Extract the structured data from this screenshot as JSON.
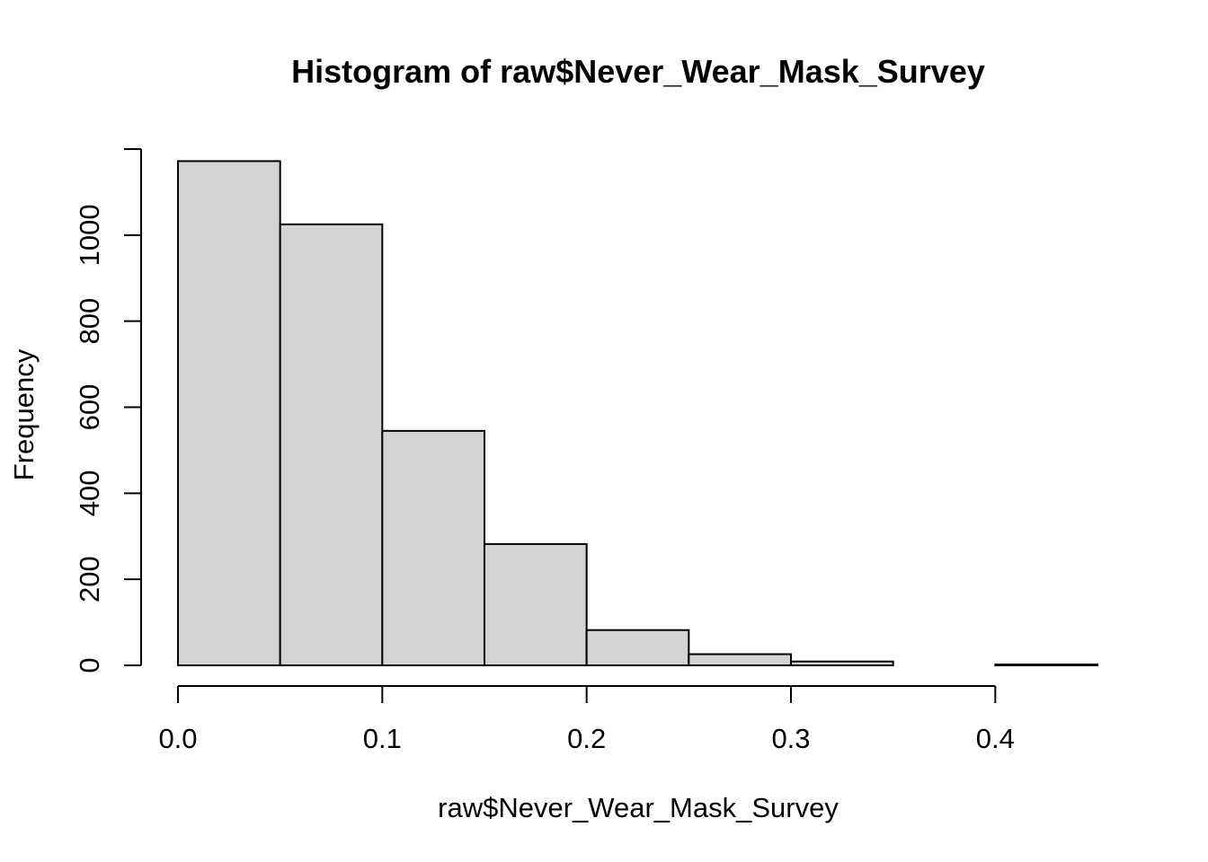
{
  "chart_data": {
    "type": "bar",
    "title": "Histogram of raw$Never_Wear_Mask_Survey",
    "xlabel": "raw$Never_Wear_Mask_Survey",
    "ylabel": "Frequency",
    "bins": [
      {
        "x0": 0.0,
        "x1": 0.05,
        "count": 1172
      },
      {
        "x0": 0.05,
        "x1": 0.1,
        "count": 1025
      },
      {
        "x0": 0.1,
        "x1": 0.15,
        "count": 545
      },
      {
        "x0": 0.15,
        "x1": 0.2,
        "count": 282
      },
      {
        "x0": 0.2,
        "x1": 0.25,
        "count": 82
      },
      {
        "x0": 0.25,
        "x1": 0.3,
        "count": 26
      },
      {
        "x0": 0.3,
        "x1": 0.35,
        "count": 9
      },
      {
        "x0": 0.35,
        "x1": 0.4,
        "count": 0
      },
      {
        "x0": 0.4,
        "x1": 0.45,
        "count": 2
      }
    ],
    "xlim": [
      0.0,
      0.45
    ],
    "ylim": [
      0,
      1200
    ],
    "x_ticks": [
      {
        "value": 0.0,
        "label": "0.0"
      },
      {
        "value": 0.1,
        "label": "0.1"
      },
      {
        "value": 0.2,
        "label": "0.2"
      },
      {
        "value": 0.3,
        "label": "0.3"
      },
      {
        "value": 0.4,
        "label": "0.4"
      }
    ],
    "y_ticks": [
      {
        "value": 0,
        "label": "0"
      },
      {
        "value": 200,
        "label": "200"
      },
      {
        "value": 400,
        "label": "400"
      },
      {
        "value": 600,
        "label": "600"
      },
      {
        "value": 800,
        "label": "800"
      },
      {
        "value": 1000,
        "label": "1000"
      }
    ],
    "y_axis_top": 1200,
    "grid": false,
    "bar_fill": "#d3d3d3",
    "bar_stroke": "#000000"
  }
}
